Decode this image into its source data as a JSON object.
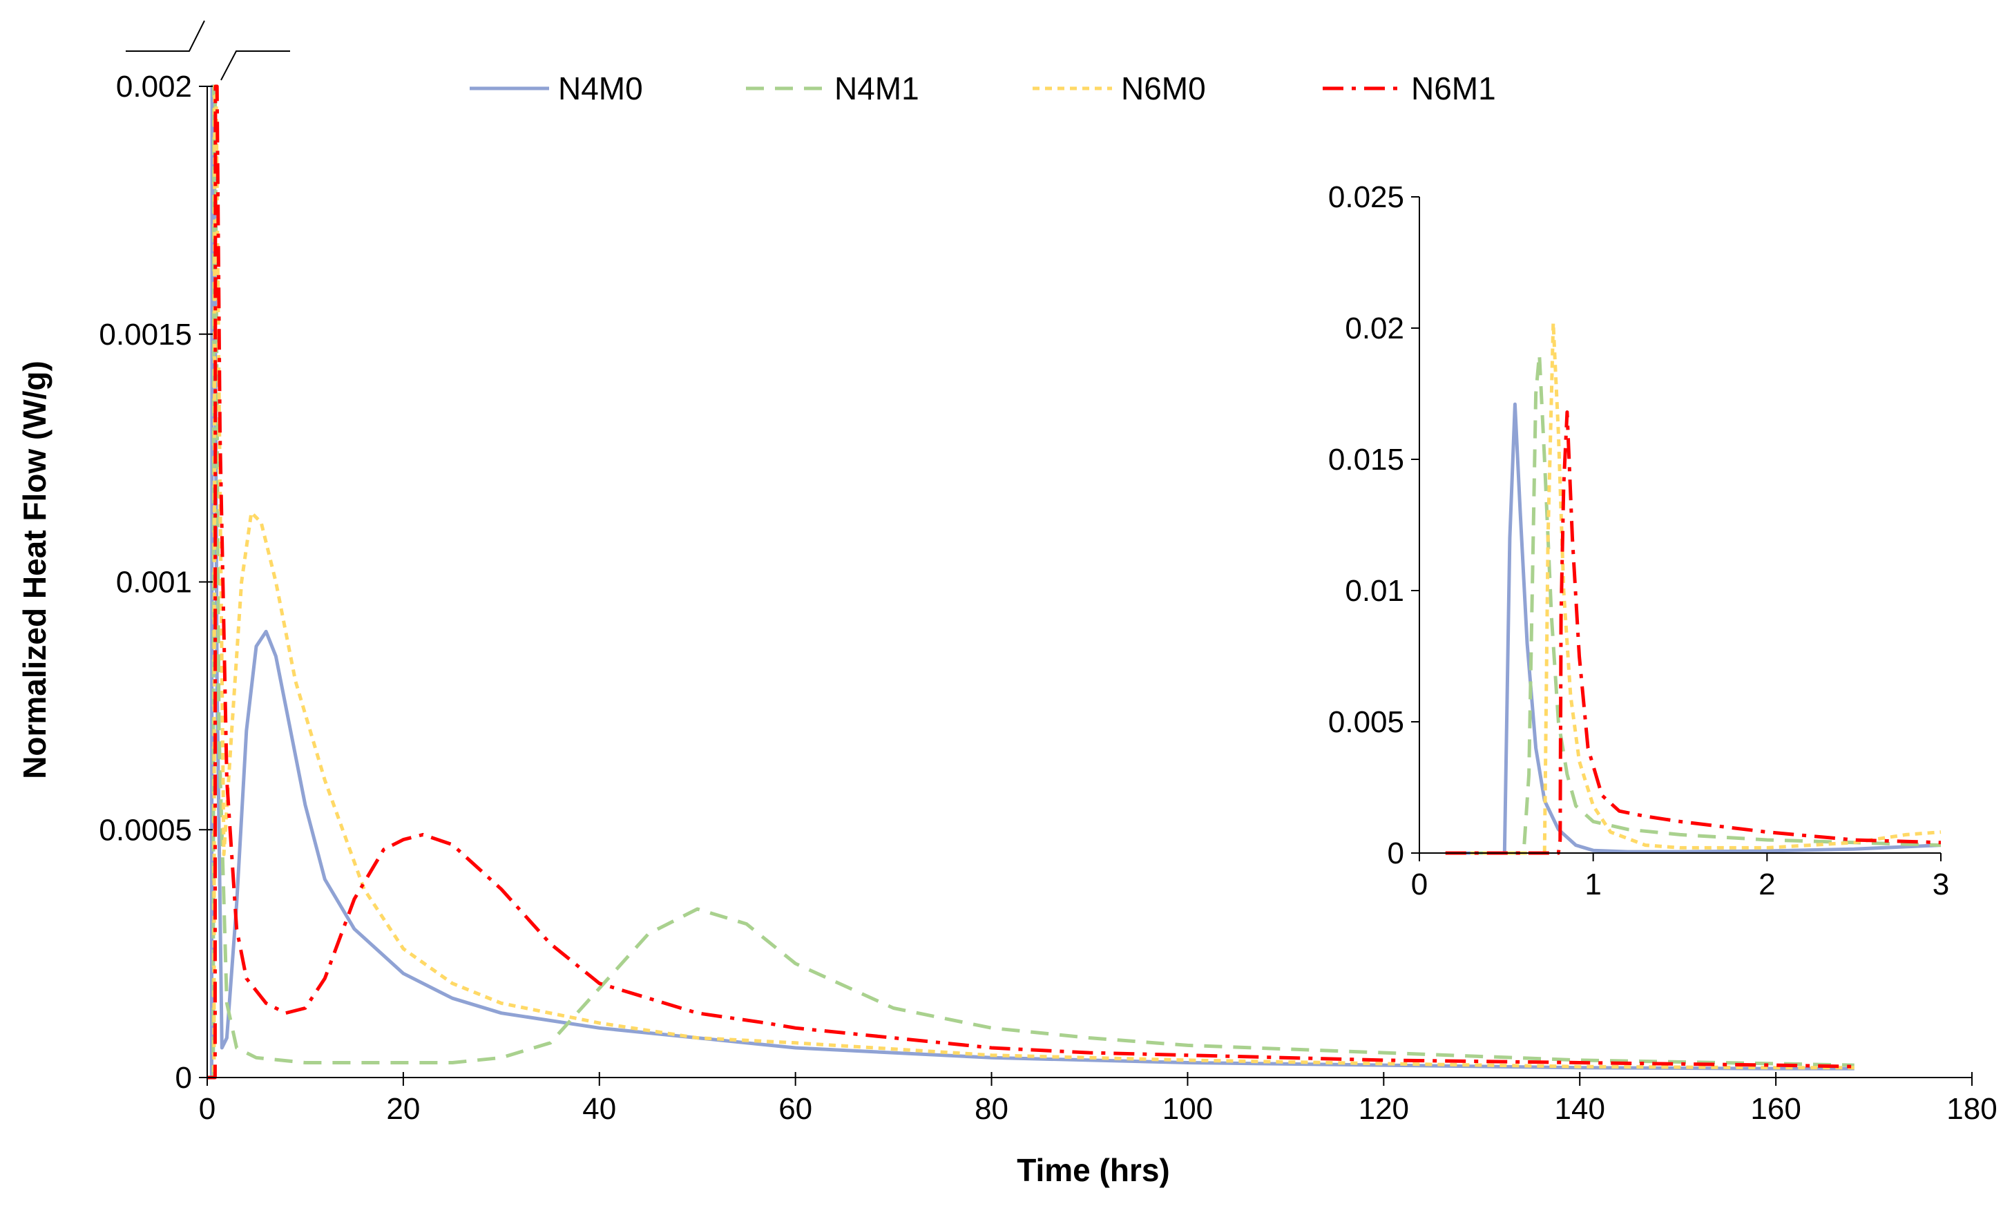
{
  "chart_data": [
    {
      "id": "main",
      "type": "line",
      "title": "",
      "xlabel": "Time (hrs)",
      "ylabel": "Normalized Heat Flow (W/g)",
      "xlim": [
        0,
        180
      ],
      "ylim": [
        0,
        0.002
      ],
      "axis_break": "top of y-axis (peaks exceed 0.002)",
      "xticks": [
        0,
        20,
        40,
        60,
        80,
        100,
        120,
        140,
        160,
        180
      ],
      "xtick_labels": [
        "0",
        "20",
        "40",
        "60",
        "80",
        "100",
        "120",
        "140",
        "160",
        "180"
      ],
      "yticks": [
        0,
        0.0005,
        0.001,
        0.0015,
        0.002
      ],
      "ytick_labels": [
        "0",
        "0.0005",
        "0.001",
        "0.0015",
        "0.002"
      ],
      "legend_position": "top",
      "series": [
        {
          "name": "N4M0",
          "color": "#8FA2D4",
          "dash": "solid",
          "x": [
            0,
            0.45,
            0.5,
            0.7,
            1,
            1.5,
            2,
            3,
            4,
            5,
            6,
            7,
            8,
            10,
            12,
            15,
            20,
            25,
            30,
            40,
            50,
            60,
            80,
            100,
            120,
            140,
            160,
            168
          ],
          "y": [
            0,
            0,
            0.002,
            0.002,
            0.0008,
            6e-05,
            8e-05,
            0.00035,
            0.0007,
            0.00087,
            0.0009,
            0.00085,
            0.00075,
            0.00055,
            0.0004,
            0.0003,
            0.00021,
            0.00016,
            0.00013,
            0.0001,
            8e-05,
            6e-05,
            4e-05,
            3e-05,
            2.5e-05,
            2e-05,
            1.8e-05,
            1.8e-05
          ]
        },
        {
          "name": "N4M1",
          "color": "#A9D18E",
          "dash": "dash",
          "x": [
            0,
            0.62,
            0.67,
            0.8,
            1.2,
            2,
            3,
            5,
            10,
            15,
            20,
            25,
            30,
            35,
            40,
            45,
            50,
            55,
            60,
            70,
            80,
            90,
            100,
            120,
            140,
            160,
            168
          ],
          "y": [
            0,
            0,
            0.002,
            0.002,
            0.0007,
            0.00015,
            6e-05,
            4e-05,
            3e-05,
            3e-05,
            3e-05,
            3e-05,
            4e-05,
            7e-05,
            0.00018,
            0.00029,
            0.00034,
            0.00031,
            0.00023,
            0.00014,
            0.0001,
            8e-05,
            6.5e-05,
            5e-05,
            3.5e-05,
            2.8e-05,
            2.5e-05
          ]
        },
        {
          "name": "N6M0",
          "color": "#FFD966",
          "dash": "dot",
          "x": [
            0,
            0.7,
            0.76,
            0.9,
            1.2,
            1.7,
            2.5,
            3.5,
            4.5,
            5.5,
            7,
            9,
            12,
            16,
            20,
            25,
            30,
            40,
            50,
            60,
            80,
            100,
            120,
            140,
            160,
            168
          ],
          "y": [
            0,
            0,
            0.002,
            0.002,
            0.0014,
            0.00045,
            0.0007,
            0.001,
            0.00114,
            0.00112,
            0.001,
            0.0008,
            0.0006,
            0.00038,
            0.00026,
            0.00019,
            0.00015,
            0.00011,
            8e-05,
            7e-05,
            4.5e-05,
            3.5e-05,
            2.8e-05,
            2.2e-05,
            2e-05,
            2e-05
          ]
        },
        {
          "name": "N6M1",
          "color": "#FF0000",
          "dash": "dashdot",
          "x": [
            0,
            0.8,
            0.84,
            1.0,
            1.3,
            2,
            3,
            4,
            6,
            8,
            10,
            12,
            15,
            18,
            20,
            22,
            25,
            30,
            35,
            40,
            50,
            57,
            60,
            70,
            80,
            90,
            100,
            120,
            140,
            160,
            168
          ],
          "y": [
            0,
            0,
            0.002,
            0.002,
            0.0013,
            0.0006,
            0.0003,
            0.0002,
            0.00015,
            0.00013,
            0.00014,
            0.0002,
            0.00036,
            0.00046,
            0.00048,
            0.00049,
            0.00047,
            0.00038,
            0.00027,
            0.00019,
            0.00013,
            0.00011,
            0.0001,
            8e-05,
            6e-05,
            5e-05,
            4.5e-05,
            3.5e-05,
            3e-05,
            2.5e-05,
            2.2e-05
          ]
        }
      ]
    },
    {
      "id": "inset",
      "type": "line",
      "title": "",
      "xlabel": "",
      "ylabel": "",
      "xlim": [
        0,
        3
      ],
      "ylim": [
        0,
        0.025
      ],
      "xticks": [
        0,
        1,
        2,
        3
      ],
      "xtick_labels": [
        "0",
        "1",
        "2",
        "3"
      ],
      "yticks": [
        0,
        0.005,
        0.01,
        0.015,
        0.02,
        0.025
      ],
      "ytick_labels": [
        "0",
        "0.005",
        "0.01",
        "0.015",
        "0.02",
        "0.025"
      ],
      "series": [
        {
          "name": "N4M0",
          "color": "#8FA2D4",
          "dash": "solid",
          "x": [
            0.15,
            0.49,
            0.52,
            0.55,
            0.58,
            0.62,
            0.67,
            0.72,
            0.8,
            0.9,
            1.0,
            1.2,
            1.5,
            2.0,
            2.5,
            3.0
          ],
          "y": [
            0,
            0,
            0.012,
            0.0171,
            0.013,
            0.008,
            0.004,
            0.002,
            0.0009,
            0.0003,
            0.0001,
            5e-05,
            5e-05,
            8e-05,
            0.00015,
            0.0003
          ]
        },
        {
          "name": "N4M1",
          "color": "#A9D18E",
          "dash": "dash",
          "x": [
            0.15,
            0.6,
            0.63,
            0.67,
            0.69,
            0.72,
            0.76,
            0.8,
            0.85,
            0.9,
            1.0,
            1.2,
            1.5,
            2.0,
            2.5,
            3.0
          ],
          "y": [
            0,
            0,
            0.003,
            0.0175,
            0.019,
            0.015,
            0.009,
            0.005,
            0.003,
            0.0018,
            0.0012,
            0.0009,
            0.0007,
            0.0005,
            0.0004,
            0.0003
          ]
        },
        {
          "name": "N6M0",
          "color": "#FFD966",
          "dash": "dot",
          "x": [
            0.15,
            0.72,
            0.74,
            0.77,
            0.8,
            0.83,
            0.87,
            0.92,
            1.0,
            1.1,
            1.3,
            1.5,
            2.0,
            2.5,
            2.8,
            3.0
          ],
          "y": [
            0,
            0,
            0.012,
            0.0202,
            0.016,
            0.01,
            0.006,
            0.0035,
            0.0018,
            0.0008,
            0.0003,
            0.0002,
            0.0002,
            0.0004,
            0.0007,
            0.0008
          ]
        },
        {
          "name": "N6M1",
          "color": "#FF0000",
          "dash": "dashdot",
          "x": [
            0.15,
            0.8,
            0.81,
            0.815,
            0.83,
            0.85,
            0.88,
            0.92,
            0.97,
            1.05,
            1.15,
            1.3,
            1.5,
            2.0,
            2.5,
            3.0
          ],
          "y": [
            0,
            0,
            0.0005,
            0.009,
            0.014,
            0.0168,
            0.012,
            0.0075,
            0.004,
            0.0022,
            0.0016,
            0.0014,
            0.0012,
            0.0008,
            0.0005,
            0.0004
          ]
        }
      ]
    }
  ]
}
